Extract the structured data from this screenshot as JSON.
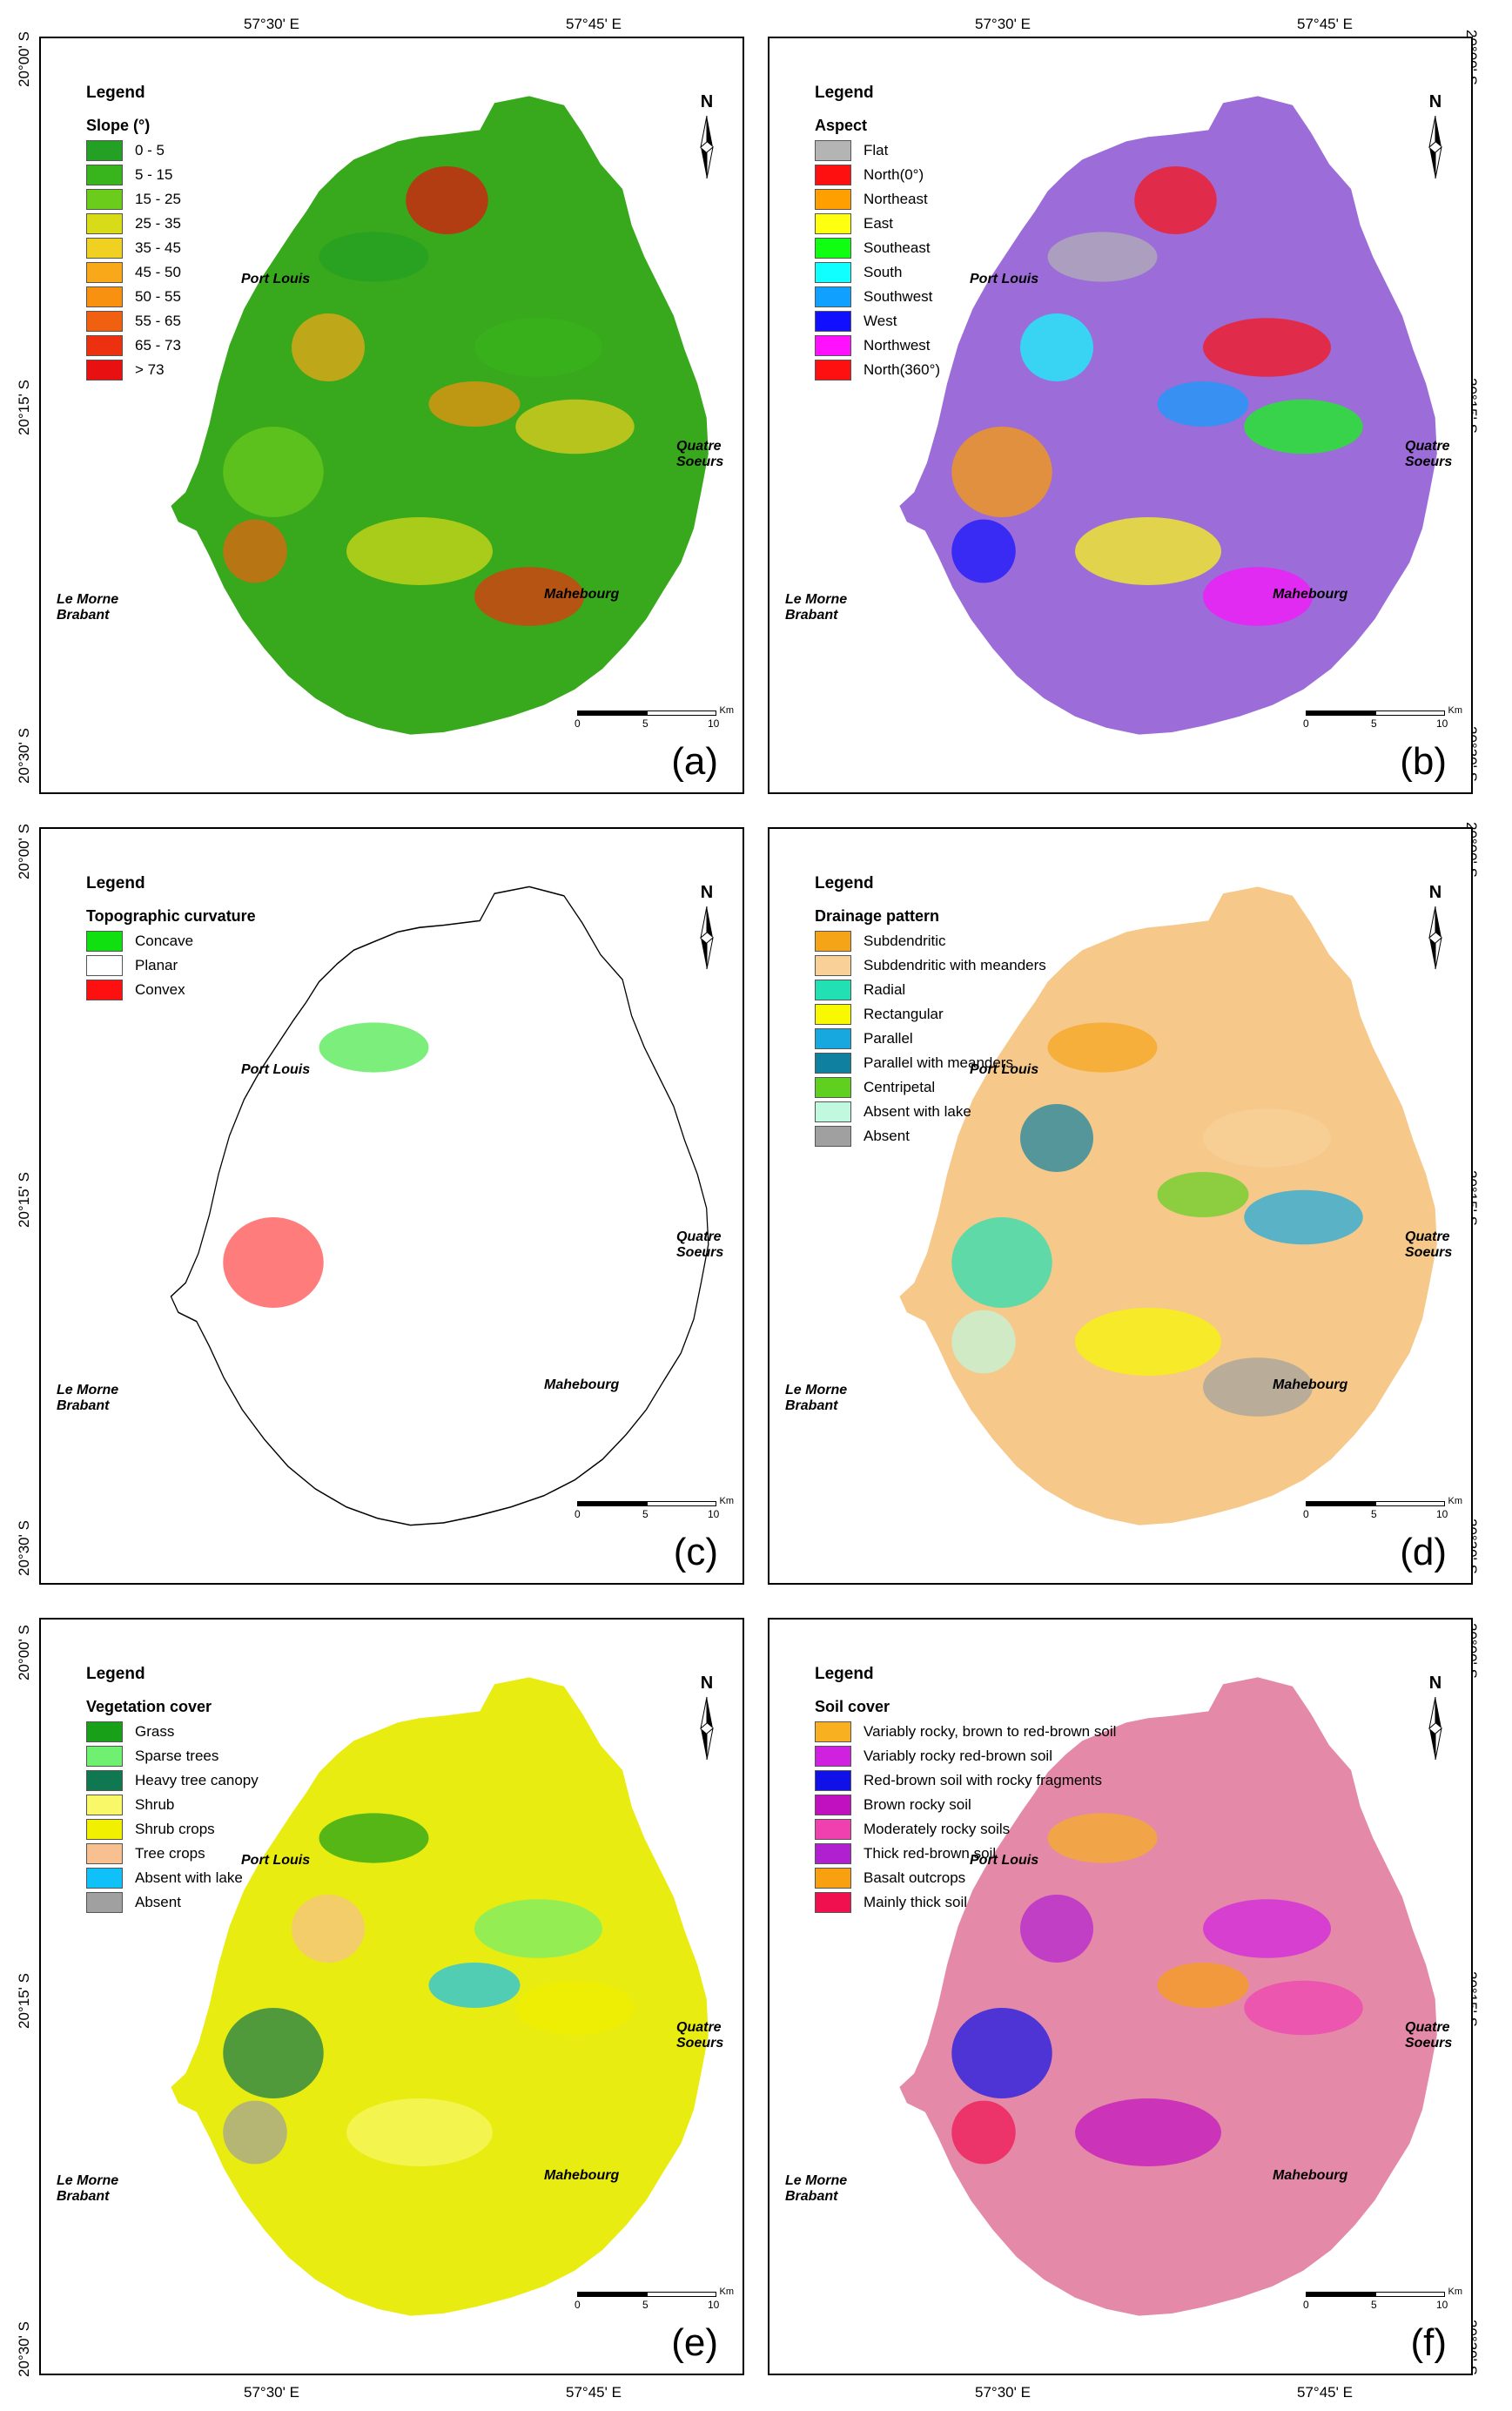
{
  "coords": {
    "top": [
      "57°30' E",
      "57°45' E"
    ],
    "bottom": [
      "57°30' E",
      "57°45' E"
    ],
    "left": [
      "20°00' S",
      "20°15' S",
      "20°30' S"
    ],
    "right": [
      "20°00' S",
      "20°15' S",
      "20°30' S"
    ]
  },
  "places": {
    "port_louis": "Port Louis",
    "quatre_soeurs": "Quatre Soeurs",
    "le_morne": "Le Morne Brabant",
    "mahebourg": "Mahebourg"
  },
  "north_label": "N",
  "scale": {
    "ticks": [
      "0",
      "5",
      "10"
    ],
    "unit": "Km"
  },
  "panels": [
    {
      "id": "a",
      "label": "(a)",
      "legend_title": "Legend",
      "legend_subtitle": "Slope (°)",
      "fill": "#38a81c",
      "items": [
        {
          "label": "0 - 5",
          "color": "#24a024"
        },
        {
          "label": "5 - 15",
          "color": "#38b41c"
        },
        {
          "label": "15 - 25",
          "color": "#6ccc1c"
        },
        {
          "label": "25 - 35",
          "color": "#d8dc18"
        },
        {
          "label": "35 - 45",
          "color": "#f0d020"
        },
        {
          "label": "45 - 50",
          "color": "#f8a818"
        },
        {
          "label": "50 - 55",
          "color": "#f89010"
        },
        {
          "label": "55 - 65",
          "color": "#f06010"
        },
        {
          "label": "65 - 73",
          "color": "#ec3010"
        },
        {
          "label": "> 73",
          "color": "#e81010"
        }
      ]
    },
    {
      "id": "b",
      "label": "(b)",
      "legend_title": "Legend",
      "legend_subtitle": "Aspect",
      "fill": "#9c6cd8",
      "items": [
        {
          "label": "Flat",
          "color": "#b4b4b4"
        },
        {
          "label": "North(0°)",
          "color": "#ff1010"
        },
        {
          "label": "Northeast",
          "color": "#ffa000"
        },
        {
          "label": "East",
          "color": "#ffff10"
        },
        {
          "label": "Southeast",
          "color": "#10ff10"
        },
        {
          "label": "South",
          "color": "#10ffff"
        },
        {
          "label": "Southwest",
          "color": "#10a0ff"
        },
        {
          "label": "West",
          "color": "#1010ff"
        },
        {
          "label": "Northwest",
          "color": "#ff10ff"
        },
        {
          "label": "North(360°)",
          "color": "#ff1010"
        }
      ]
    },
    {
      "id": "c",
      "label": "(c)",
      "legend_title": "Legend",
      "legend_subtitle": "Topographic curvature",
      "fill": "#ffffff",
      "items": [
        {
          "label": "Concave",
          "color": "#10e010"
        },
        {
          "label": "Planar",
          "color": "#ffffff"
        },
        {
          "label": "Convex",
          "color": "#ff1010"
        }
      ]
    },
    {
      "id": "d",
      "label": "(d)",
      "legend_title": "Legend",
      "legend_subtitle": "Drainage pattern",
      "fill": "#f6c88a",
      "items": [
        {
          "label": "Subdendritic",
          "color": "#f5a418"
        },
        {
          "label": "Subdendritic with meanders",
          "color": "#f8d098"
        },
        {
          "label": "Radial",
          "color": "#20e0b4"
        },
        {
          "label": "Rectangular",
          "color": "#f8f800"
        },
        {
          "label": "Parallel",
          "color": "#18a8e0"
        },
        {
          "label": "Parallel with meanders",
          "color": "#1080a0"
        },
        {
          "label": "Centripetal",
          "color": "#60d020"
        },
        {
          "label": "Absent with lake",
          "color": "#c0f8e0"
        },
        {
          "label": "Absent",
          "color": "#a0a0a0"
        }
      ]
    },
    {
      "id": "e",
      "label": "(e)",
      "legend_title": "Legend",
      "legend_subtitle": "Vegetation cover",
      "fill": "#e8ec10",
      "items": [
        {
          "label": "Grass",
          "color": "#18a018"
        },
        {
          "label": "Sparse trees",
          "color": "#70f070"
        },
        {
          "label": "Heavy tree canopy",
          "color": "#107850"
        },
        {
          "label": "Shrub",
          "color": "#f8f868"
        },
        {
          "label": "Shrub crops",
          "color": "#f0f000"
        },
        {
          "label": "Tree crops",
          "color": "#f8c090"
        },
        {
          "label": "Absent with lake",
          "color": "#10c0f8"
        },
        {
          "label": "Absent",
          "color": "#a0a0a0"
        }
      ]
    },
    {
      "id": "f",
      "label": "(f)",
      "legend_title": "Legend",
      "legend_subtitle": "Soil cover",
      "fill": "#e48aa8",
      "items": [
        {
          "label": "Variably rocky, brown to red-brown soil",
          "color": "#f8b020"
        },
        {
          "label": "Variably rocky red-brown soil",
          "color": "#d020e0"
        },
        {
          "label": "Red-brown soil with rocky fragments",
          "color": "#1010e8"
        },
        {
          "label": "Brown rocky soil",
          "color": "#c010c0"
        },
        {
          "label": "Moderately rocky soils",
          "color": "#f040b0"
        },
        {
          "label": "Thick red-brown soil",
          "color": "#b020d0"
        },
        {
          "label": "Basalt outcrops",
          "color": "#f8a010"
        },
        {
          "label": "Mainly thick soil",
          "color": "#f01050"
        }
      ]
    }
  ]
}
